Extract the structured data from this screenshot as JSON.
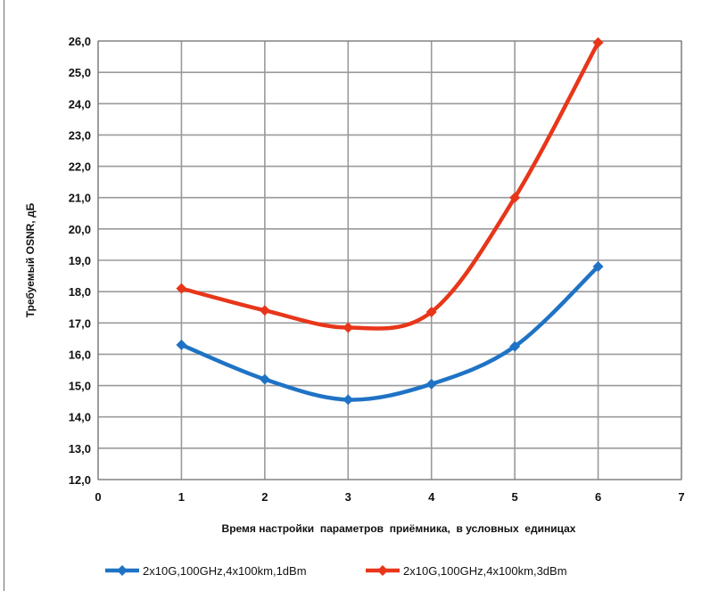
{
  "chart_data": {
    "type": "line",
    "title": "",
    "xlabel": "Время настройки  параметров  приёмника,  в условных  единицах",
    "ylabel": "Требуемый OSNR, дБ",
    "xlim": [
      0,
      7
    ],
    "ylim": [
      12,
      26
    ],
    "x_ticks": [
      "0",
      "1",
      "2",
      "3",
      "4",
      "5",
      "6",
      "7"
    ],
    "y_ticks": [
      "12,0",
      "13,0",
      "14,0",
      "15,0",
      "16,0",
      "17,0",
      "18,0",
      "19,0",
      "20,0",
      "21,0",
      "22,0",
      "23,0",
      "24,0",
      "25,0",
      "26,0"
    ],
    "grid": true,
    "legend_position": "bottom",
    "series": [
      {
        "name": "2x10G,100GHz,4x100km,1dBm",
        "color": "#1f73c5",
        "marker": "diamond",
        "x": [
          1,
          2,
          3,
          4,
          5,
          6
        ],
        "values": [
          16.3,
          15.2,
          14.55,
          15.05,
          16.25,
          18.8
        ]
      },
      {
        "name": "2x10G,100GHz,4x100km,3dBm",
        "color": "#e8361a",
        "marker": "diamond",
        "x": [
          1,
          2,
          3,
          4,
          5,
          6
        ],
        "values": [
          18.1,
          17.4,
          16.85,
          17.35,
          21.0,
          25.95
        ]
      }
    ]
  }
}
